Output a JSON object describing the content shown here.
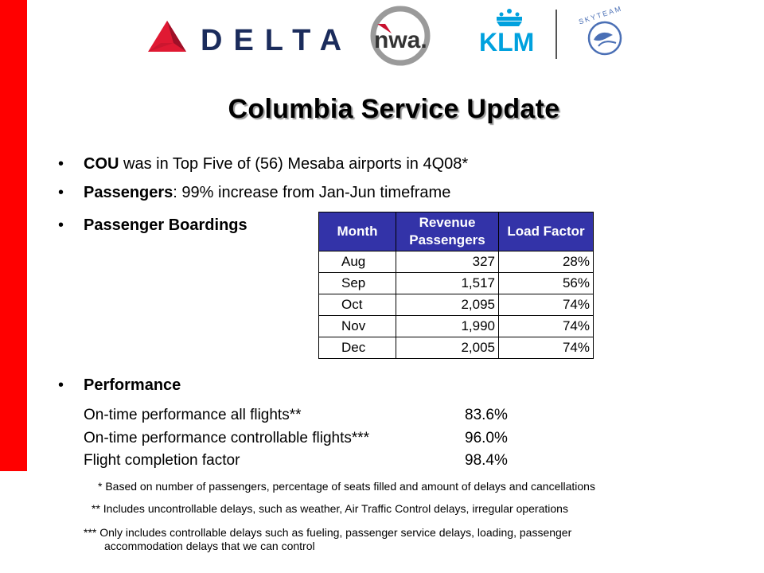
{
  "logos": {
    "delta": "DELTA",
    "nwa": "nwa.",
    "klm": "KLM",
    "skyteam": "SKYTEAM",
    "colors": {
      "delta_red": "#e01933",
      "delta_navy": "#1b2c5c",
      "klm_blue": "#00a1de",
      "nwa_red": "#c8102e"
    }
  },
  "title": "Columbia Service Update",
  "bullets": [
    {
      "bold": "COU",
      "rest": " was in Top Five of (56) Mesaba airports in 4Q08*"
    },
    {
      "bold": "Passengers",
      "rest": ": 99% increase from Jan-Jun timeframe"
    },
    {
      "bold": "Passenger Boardings",
      "rest": ""
    },
    {
      "bold": "Performance",
      "rest": ""
    }
  ],
  "table": {
    "headers": [
      "Month",
      "Revenue Passengers",
      "Load Factor"
    ],
    "header_color": "#3333a8",
    "rows": [
      {
        "month": "Aug",
        "passengers": "327",
        "load": "28%"
      },
      {
        "month": "Sep",
        "passengers": "1,517",
        "load": "56%"
      },
      {
        "month": "Oct",
        "passengers": "2,095",
        "load": "74%"
      },
      {
        "month": "Nov",
        "passengers": "1,990",
        "load": "74%"
      },
      {
        "month": "Dec",
        "passengers": "2,005",
        "load": "74%"
      }
    ]
  },
  "performance": [
    {
      "label": "On-time performance all flights**",
      "value": "83.6%"
    },
    {
      "label": "On-time performance controllable flights***",
      "value": "96.0%"
    },
    {
      "label": "Flight completion factor",
      "value": "98.4%"
    }
  ],
  "footnotes": [
    "* Based on number of passengers, percentage of seats filled and amount of delays and cancellations",
    "** Includes uncontrollable delays, such as weather, Air Traffic Control delays, irregular operations",
    "*** Only includes controllable delays such as fueling, passenger service delays, loading, passenger",
    "accommodation delays that we can control"
  ],
  "accent_red": "#ff0000"
}
